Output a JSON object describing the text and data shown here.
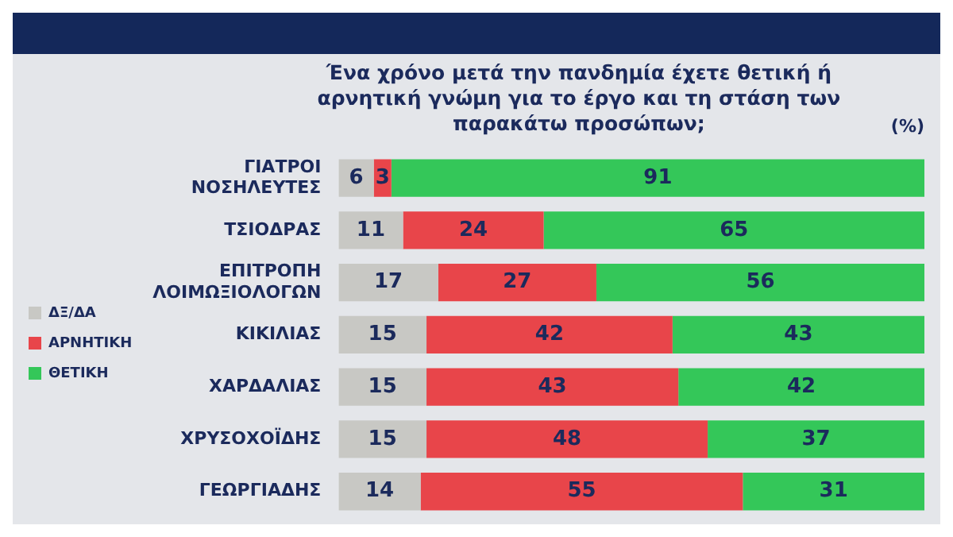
{
  "chart_data": {
    "type": "bar",
    "orientation": "horizontal",
    "stacked": true,
    "title": "Ένα χρόνο μετά την πανδημία έχετε θετική ή αρνητική γνώμη για το έργο και τη στάση των παρακάτω προσώπων;",
    "subtitle": "(%)",
    "categories": [
      "ΓΙΑΤΡΟΙ ΝΟΣΗΛΕΥΤΕΣ",
      "ΤΣΙΟΔΡΑΣ",
      "ΕΠΙΤΡΟΠΗ ΛΟΙΜΩΞΙΟΛΟΓΩΝ",
      "ΚΙΚΙΛΙΑΣ",
      "ΧΑΡΔΑΛΙΑΣ",
      "ΧΡΥΣΟΧΟΪΔΗΣ",
      "ΓΕΩΡΓΙΑΔΗΣ"
    ],
    "series": [
      {
        "name": "ΔΞ/ΔΑ",
        "color": "#c8c8c4",
        "values": [
          6,
          11,
          17,
          15,
          15,
          15,
          14
        ]
      },
      {
        "name": "ΑΡΝΗΤΙΚΗ",
        "color": "#e8454a",
        "values": [
          3,
          24,
          27,
          42,
          43,
          48,
          55
        ]
      },
      {
        "name": "ΘΕΤΙΚΗ",
        "color": "#34c759",
        "values": [
          91,
          65,
          56,
          43,
          42,
          37,
          31
        ]
      }
    ],
    "data_labels": true,
    "legend": "left",
    "grid": false,
    "tick_labels": "y"
  }
}
